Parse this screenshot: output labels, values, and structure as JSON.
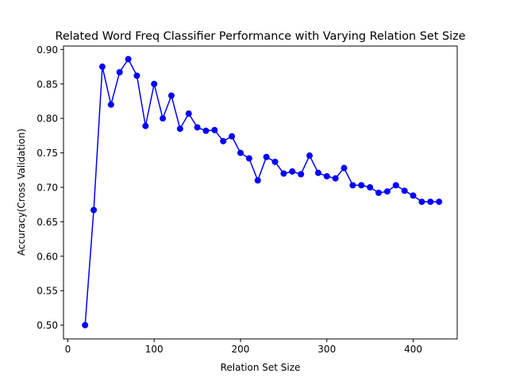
{
  "chart_data": {
    "type": "line",
    "title": "Related Word Freq Classifier Performance with Varying Relation Set Size",
    "xlabel": "Relation Set Size",
    "ylabel": "Accuracy(Cross Validation)",
    "xlim": [
      -5,
      451
    ],
    "ylim": [
      0.48,
      0.905
    ],
    "xticks": [
      "0",
      "100",
      "200",
      "300",
      "400"
    ],
    "yticks": [
      "0.50",
      "0.55",
      "0.60",
      "0.65",
      "0.70",
      "0.75",
      "0.80",
      "0.85",
      "0.90"
    ],
    "grid": false,
    "color": "#0000ff",
    "marker": "circle",
    "x": [
      20,
      30,
      40,
      50,
      60,
      70,
      80,
      90,
      100,
      110,
      120,
      130,
      140,
      150,
      160,
      170,
      180,
      190,
      200,
      210,
      220,
      230,
      240,
      250,
      260,
      270,
      280,
      290,
      300,
      310,
      320,
      330,
      340,
      350,
      360,
      370,
      380,
      390,
      400,
      410,
      420,
      430
    ],
    "y": [
      0.5,
      0.667,
      0.875,
      0.82,
      0.867,
      0.886,
      0.862,
      0.789,
      0.85,
      0.8,
      0.833,
      0.785,
      0.807,
      0.787,
      0.782,
      0.783,
      0.767,
      0.774,
      0.75,
      0.742,
      0.71,
      0.744,
      0.737,
      0.72,
      0.723,
      0.719,
      0.746,
      0.721,
      0.716,
      0.713,
      0.728,
      0.703,
      0.703,
      0.7,
      0.692,
      0.694,
      0.703,
      0.695,
      0.688,
      0.679,
      0.679,
      0.679
    ]
  }
}
